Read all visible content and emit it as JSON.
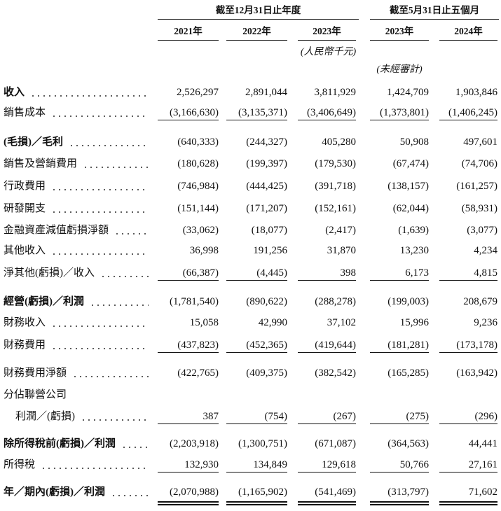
{
  "header": {
    "group1": "截至12月31日止年度",
    "group2": "截至5月31日止五個月",
    "years": [
      "2021年",
      "2022年",
      "2023年",
      "2023年",
      "2024年"
    ],
    "unit": "(人民幣千元)",
    "unaudited": "(未經審計)"
  },
  "table": {
    "rows": [
      {
        "label": "收入",
        "values": [
          "2,526,297",
          "2,891,044",
          "3,811,929",
          "1,424,709",
          "1,903,846"
        ]
      },
      {
        "label": "銷售成本",
        "values": [
          "(3,166,630)",
          "(3,135,371)",
          "(3,406,649)",
          "(1,373,801)",
          "(1,406,245)"
        ]
      },
      {
        "label": "(毛損)／毛利",
        "values": [
          "(640,333)",
          "(244,327)",
          "405,280",
          "50,908",
          "497,601"
        ]
      },
      {
        "label": "銷售及營銷費用",
        "values": [
          "(180,628)",
          "(199,397)",
          "(179,530)",
          "(67,474)",
          "(74,706)"
        ]
      },
      {
        "label": "行政費用",
        "values": [
          "(746,984)",
          "(444,425)",
          "(391,718)",
          "(138,157)",
          "(161,257)"
        ]
      },
      {
        "label": "研發開支",
        "values": [
          "(151,144)",
          "(171,207)",
          "(152,161)",
          "(62,044)",
          "(58,931)"
        ]
      },
      {
        "label": "金融資產減值虧損淨額",
        "values": [
          "(33,062)",
          "(18,077)",
          "(2,417)",
          "(1,639)",
          "(3,077)"
        ]
      },
      {
        "label": "其他收入",
        "values": [
          "36,998",
          "191,256",
          "31,870",
          "13,230",
          "4,234"
        ]
      },
      {
        "label": "淨其他(虧損)／收入",
        "values": [
          "(66,387)",
          "(4,445)",
          "398",
          "6,173",
          "4,815"
        ]
      },
      {
        "label": "經營(虧損)／利潤",
        "values": [
          "(1,781,540)",
          "(890,622)",
          "(288,278)",
          "(199,003)",
          "208,679"
        ]
      },
      {
        "label": "財務收入",
        "values": [
          "15,058",
          "42,990",
          "37,102",
          "15,996",
          "9,236"
        ]
      },
      {
        "label": "財務費用",
        "values": [
          "(437,823)",
          "(452,365)",
          "(419,644)",
          "(181,281)",
          "(173,178)"
        ]
      },
      {
        "label": "財務費用淨額",
        "values": [
          "(422,765)",
          "(409,375)",
          "(382,542)",
          "(165,285)",
          "(163,942)"
        ]
      },
      {
        "label": "分佔聯營公司",
        "values": []
      },
      {
        "label": "利潤／(虧損)",
        "values": [
          "387",
          "(754)",
          "(267)",
          "(275)",
          "(296)"
        ]
      },
      {
        "label": "除所得稅前(虧損)／利潤",
        "values": [
          "(2,203,918)",
          "(1,300,751)",
          "(671,087)",
          "(364,563)",
          "44,441"
        ]
      },
      {
        "label": "所得稅",
        "values": [
          "132,930",
          "134,849",
          "129,618",
          "50,766",
          "27,161"
        ]
      },
      {
        "label": "年／期內(虧損)／利潤",
        "values": [
          "(2,070,988)",
          "(1,165,902)",
          "(541,469)",
          "(313,797)",
          "71,602"
        ]
      }
    ]
  }
}
